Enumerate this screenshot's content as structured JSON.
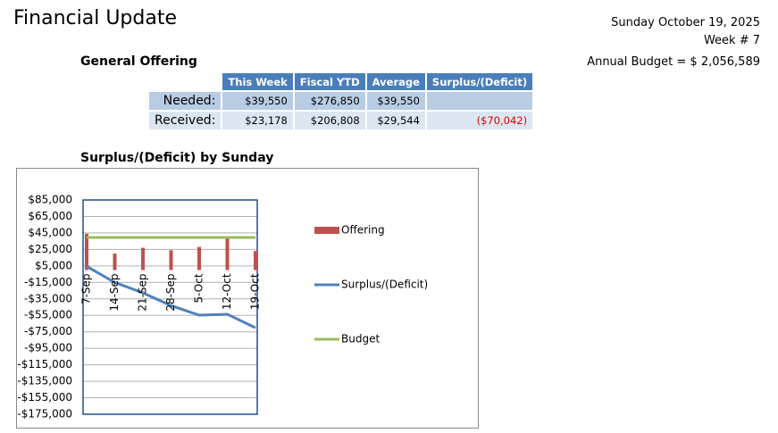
{
  "header": {
    "title": "Financial Update",
    "date": "Sunday October 19, 2025",
    "week": "Week # 7",
    "budget": "Annual Budget = $ 2,056,589"
  },
  "section_title": "General Offering",
  "table": {
    "columns": [
      "This Week",
      "Fiscal YTD",
      "Average",
      "Surplus/(Deficit)"
    ],
    "rows": [
      [
        "Needed:",
        "$39,550",
        "$276,850",
        "$39,550",
        ""
      ],
      [
        "Received:",
        "$23,178",
        "$206,808",
        "$29,544",
        "($70,042)"
      ]
    ]
  },
  "chart_data": {
    "type": "line",
    "title": "Surplus/(Deficit) by Sunday",
    "categories": [
      "7-Sep",
      "14-Sep",
      "21-Sep",
      "28-Sep",
      "5-Oct",
      "12-Oct",
      "19-Oct"
    ],
    "series": [
      {
        "name": "Offering",
        "type": "bar",
        "color": "#c0504d",
        "values": [
          44000,
          20000,
          27000,
          24000,
          28000,
          40630,
          23178
        ]
      },
      {
        "name": "Surplus/(Deficit)",
        "type": "line",
        "color": "#4f81bd",
        "values": [
          4450,
          -15100,
          -27650,
          -43200,
          -54750,
          -53670,
          -70042
        ]
      },
      {
        "name": "Budget",
        "type": "line",
        "color": "#9bbb59",
        "values": [
          39550,
          39550,
          39550,
          39550,
          39550,
          39550,
          39550
        ]
      }
    ],
    "ylim": [
      -175000,
      85000
    ],
    "yticks": [
      {
        "value": 85000,
        "label": "$85,000"
      },
      {
        "value": 65000,
        "label": "$65,000"
      },
      {
        "value": 45000,
        "label": "$45,000"
      },
      {
        "value": 25000,
        "label": "$25,000"
      },
      {
        "value": 5000,
        "label": "$5,000"
      },
      {
        "value": -15000,
        "label": "-$15,000"
      },
      {
        "value": -35000,
        "label": "-$35,000"
      },
      {
        "value": -55000,
        "label": "-$55,000"
      },
      {
        "value": -75000,
        "label": "-$75,000"
      },
      {
        "value": -95000,
        "label": "-$95,000"
      },
      {
        "value": -115000,
        "label": "-$115,000"
      },
      {
        "value": -135000,
        "label": "-$135,000"
      },
      {
        "value": -155000,
        "label": "-$155,000"
      },
      {
        "value": -175000,
        "label": "-$175,000"
      }
    ],
    "grid": true,
    "legend": "right"
  }
}
